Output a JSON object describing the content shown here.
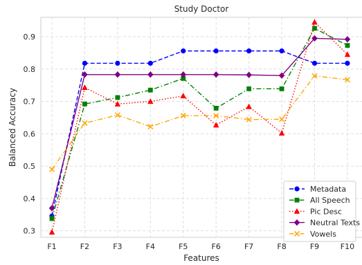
{
  "chart_data": {
    "type": "line",
    "title": "Study Doctor",
    "xlabel": "Features",
    "ylabel": "Balanced Accuracy",
    "categories": [
      "F1",
      "F2",
      "F3",
      "F4",
      "F5",
      "F6",
      "F7",
      "F8",
      "F9",
      "F10"
    ],
    "ylim": [
      0.28,
      0.96
    ],
    "yticks": [
      "0.3",
      "0.4",
      "0.5",
      "0.6",
      "0.7",
      "0.8",
      "0.9"
    ],
    "grid": true,
    "legend_position": "lower-right",
    "series": [
      {
        "name": "Metadata",
        "color": "#0000ff",
        "marker": "circle",
        "dash": "dashed",
        "values": [
          0.346,
          0.818,
          0.818,
          0.818,
          0.856,
          0.856,
          0.856,
          0.856,
          0.818,
          0.818
        ]
      },
      {
        "name": "All Speech",
        "color": "#008000",
        "marker": "square",
        "dash": "dashdot",
        "values": [
          0.338,
          0.692,
          0.712,
          0.735,
          0.771,
          0.679,
          0.739,
          0.739,
          0.926,
          0.873
        ]
      },
      {
        "name": "Pic Desc",
        "color": "#ff0000",
        "marker": "triangle",
        "dash": "dotted",
        "values": [
          0.296,
          0.743,
          0.692,
          0.7,
          0.717,
          0.627,
          0.684,
          0.602,
          0.945,
          0.845
        ]
      },
      {
        "name": "Neutral Texts",
        "color": "#800080",
        "marker": "diamond",
        "dash": "solid",
        "values": [
          0.37,
          0.783,
          0.783,
          0.783,
          0.783,
          0.783,
          0.782,
          0.78,
          0.895,
          0.892
        ]
      },
      {
        "name": "Vowels",
        "color": "#ffa500",
        "marker": "x",
        "dash": "dashdot",
        "values": [
          0.49,
          0.633,
          0.658,
          0.622,
          0.656,
          0.656,
          0.644,
          0.645,
          0.779,
          0.767
        ]
      }
    ]
  }
}
